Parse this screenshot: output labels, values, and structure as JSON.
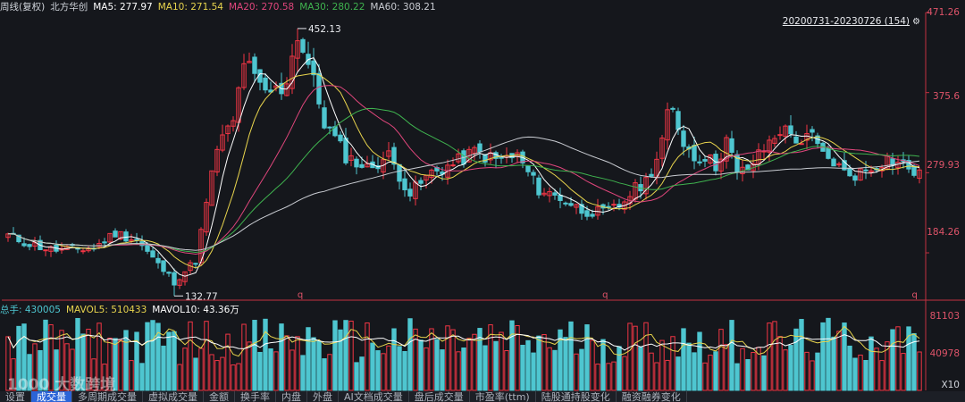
{
  "header": {
    "title": "周线(复权)",
    "stock": "北方华创",
    "ma": [
      {
        "label": "MA5: 277.97",
        "color": "#ffffff"
      },
      {
        "label": "MA10: 271.54",
        "color": "#e8d44d"
      },
      {
        "label": "MA20: 270.58",
        "color": "#e0467c"
      },
      {
        "label": "MA30: 280.22",
        "color": "#3fb34f"
      },
      {
        "label": "MA60: 308.21",
        "color": "#c9ccd2"
      }
    ]
  },
  "range_label": "20200731-20230726 (154)",
  "volume_header": {
    "items": [
      {
        "label": "总手: 430005",
        "color": "#4ec6d0"
      },
      {
        "label": "MAVOL5: 510433",
        "color": "#e8d44d"
      },
      {
        "label": "MAVOL10: 43.36万",
        "color": "#ffffff"
      }
    ]
  },
  "tabs": [
    "设置",
    "成交量",
    "多周期成交量",
    "虚拟成交量",
    "金额",
    "换手率",
    "内盘",
    "外盘",
    "AI文档成交量",
    "盘后成交量",
    "市盈率(ttm)",
    "陆股通持股变化",
    "融资融券变化"
  ],
  "active_tab": "成交量",
  "watermark": "1000 大数跨境",
  "colors": {
    "up": "#f23645",
    "down": "#4ec6d0",
    "bg": "#15171c"
  },
  "chart_data": {
    "type": "candlestick",
    "period": "weekly",
    "date_range": [
      "2020-07-31",
      "2023-07-26"
    ],
    "bar_count": 154,
    "y_ticks": [
      184.26,
      279.93,
      375.6,
      471.26
    ],
    "ylim": [
      132,
      471.26
    ],
    "high_annotation": 452.13,
    "low_annotation": 132.77,
    "volume_ticks": [
      "81103",
      "40978",
      "X10"
    ],
    "q_markers": [
      "q",
      "q",
      "q"
    ],
    "close_anchors": [
      [
        0,
        205
      ],
      [
        8,
        195
      ],
      [
        16,
        188
      ],
      [
        24,
        188
      ],
      [
        32,
        190
      ],
      [
        40,
        208
      ],
      [
        48,
        200
      ],
      [
        56,
        170
      ],
      [
        62,
        150
      ],
      [
        70,
        175
      ],
      [
        78,
        310
      ],
      [
        84,
        340
      ],
      [
        88,
        415
      ],
      [
        95,
        375
      ],
      [
        103,
        380
      ],
      [
        108,
        445
      ],
      [
        113,
        400
      ],
      [
        118,
        340
      ],
      [
        126,
        300
      ],
      [
        134,
        285
      ],
      [
        142,
        300
      ],
      [
        150,
        255
      ],
      [
        158,
        280
      ],
      [
        166,
        290
      ],
      [
        174,
        305
      ],
      [
        182,
        295
      ],
      [
        190,
        300
      ],
      [
        198,
        260
      ],
      [
        206,
        250
      ],
      [
        214,
        235
      ],
      [
        222,
        232
      ],
      [
        228,
        240
      ],
      [
        233,
        258
      ],
      [
        238,
        270
      ],
      [
        243,
        305
      ],
      [
        247,
        360
      ],
      [
        252,
        318
      ],
      [
        256,
        298
      ],
      [
        260,
        300
      ],
      [
        264,
        288
      ],
      [
        268,
        320
      ],
      [
        272,
        278
      ],
      [
        276,
        285
      ],
      [
        280,
        300
      ],
      [
        284,
        316
      ],
      [
        288,
        332
      ],
      [
        292,
        326
      ],
      [
        296,
        317
      ],
      [
        300,
        322
      ],
      [
        304,
        300
      ],
      [
        308,
        293
      ],
      [
        312,
        280
      ],
      [
        316,
        278
      ],
      [
        320,
        283
      ],
      [
        324,
        290
      ],
      [
        328,
        297
      ],
      [
        332,
        292
      ],
      [
        336,
        286
      ],
      [
        340,
        276
      ]
    ]
  }
}
